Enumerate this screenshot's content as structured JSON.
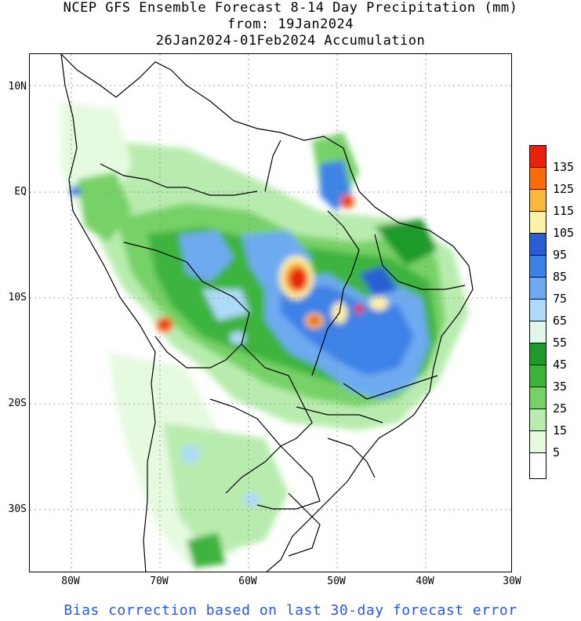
{
  "title": {
    "line1": "NCEP GFS Ensemble Forecast 8-14 Day Precipitation (mm)",
    "line2": "from: 19Jan2024",
    "line3": "26Jan2024-01Feb2024 Accumulation"
  },
  "axes": {
    "lat_labels": [
      "10N",
      "EQ",
      "10S",
      "20S",
      "30S"
    ],
    "lon_labels": [
      "80W",
      "70W",
      "60W",
      "50W",
      "40W",
      "30W"
    ]
  },
  "legend": {
    "labels": [
      "135",
      "125",
      "115",
      "105",
      "95",
      "85",
      "75",
      "65",
      "55",
      "45",
      "35",
      "25",
      "15",
      "5"
    ],
    "colors": [
      "#e8200c",
      "#f86c0c",
      "#fbb83c",
      "#fdf0a8",
      "#2a5fd4",
      "#3c82e6",
      "#6eaaf0",
      "#aedaf8",
      "#e2f6ec",
      "#1e9a2a",
      "#3cb43c",
      "#76d266",
      "#b8ecae",
      "#e6fae0",
      "#ffffff"
    ]
  },
  "footer": "Bias correction based on last 30-day forecast error"
}
